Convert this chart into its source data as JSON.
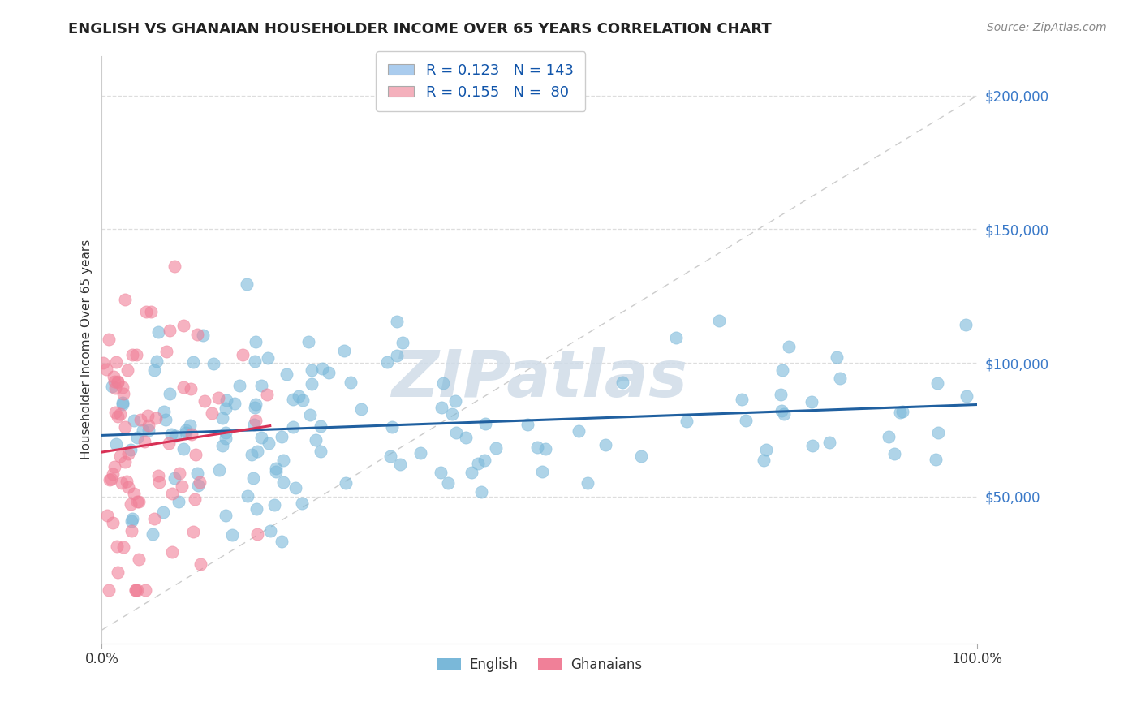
{
  "title": "ENGLISH VS GHANAIAN HOUSEHOLDER INCOME OVER 65 YEARS CORRELATION CHART",
  "source_text": "Source: ZipAtlas.com",
  "ylabel": "Householder Income Over 65 years",
  "xmin": 0.0,
  "xmax": 1.0,
  "ymin": -5000,
  "ymax": 215000,
  "yticks": [
    50000,
    100000,
    150000,
    200000
  ],
  "ytick_labels": [
    "$50,000",
    "$100,000",
    "$150,000",
    "$200,000"
  ],
  "xtick_labels": [
    "0.0%",
    "100.0%"
  ],
  "english_R": 0.123,
  "english_N": 143,
  "ghanaian_R": 0.155,
  "ghanaian_N": 80,
  "english_color": "#7ab8d9",
  "ghanaian_color": "#f08098",
  "english_line_color": "#2060a0",
  "ghanaian_line_color": "#d83055",
  "diagonal_color": "#cccccc",
  "background_color": "#ffffff",
  "watermark_text": "ZIPatlas",
  "watermark_color": "#d0dce8",
  "legend_box_english_color": "#aaccee",
  "legend_box_ghanaian_color": "#f4b0bc",
  "grid_color": "#dddddd",
  "title_fontsize": 13,
  "axis_label_fontsize": 11,
  "legend_fontsize": 13,
  "source_fontsize": 10,
  "ytick_color": "#3878c8"
}
